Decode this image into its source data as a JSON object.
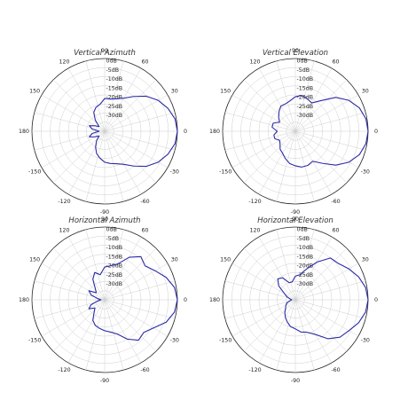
{
  "chart_data": [
    {
      "type": "polar",
      "title": "Vertical Azimuth",
      "angle_ticks": [
        0,
        30,
        60,
        90,
        120,
        150,
        180,
        -150,
        -120,
        -90,
        -60,
        -30
      ],
      "radial_ticks": [
        "0dB",
        "-5dB",
        "-10dB",
        "-15dB",
        "-20dB",
        "-25dB",
        "-30dB"
      ],
      "r_range_db": [
        -40,
        0
      ],
      "grid": true,
      "series": [
        {
          "angles": [
            0,
            10,
            20,
            30,
            40,
            50,
            60,
            70,
            80,
            90,
            100,
            110,
            120,
            130,
            140,
            150,
            160,
            170,
            180,
            190,
            200,
            210,
            220,
            230,
            240,
            250,
            260,
            270,
            280,
            290,
            300,
            310,
            320,
            330,
            340,
            350,
            360
          ],
          "values_db": [
            0,
            -0.7,
            -3,
            -6,
            -10,
            -15,
            -19,
            -21,
            -22,
            -22,
            -25,
            -26,
            -28,
            -32,
            -36,
            -34,
            -31,
            -33,
            -37,
            -33,
            -31,
            -34,
            -36,
            -33,
            -30,
            -27,
            -25,
            -23,
            -22,
            -21,
            -19,
            -15,
            -10,
            -6,
            -3,
            -0.7,
            0
          ]
        }
      ]
    },
    {
      "type": "polar",
      "title": "Vertical Elevation",
      "angle_ticks": [
        0,
        30,
        60,
        90,
        120,
        150,
        180,
        -150,
        -120,
        -90,
        -60,
        -30
      ],
      "radial_ticks": [
        "0dB",
        "-5dB",
        "-10dB",
        "-15dB",
        "-20dB",
        "-25dB",
        "-30dB"
      ],
      "r_range_db": [
        -40,
        0
      ],
      "grid": true,
      "series": [
        {
          "angles": [
            0,
            10,
            20,
            30,
            40,
            50,
            60,
            70,
            80,
            90,
            100,
            110,
            120,
            130,
            140,
            150,
            160,
            170,
            180,
            190,
            200,
            210,
            220,
            230,
            240,
            250,
            260,
            270,
            280,
            290,
            300,
            310,
            320,
            330,
            340,
            350,
            360
          ],
          "values_db": [
            0,
            -0.6,
            -2.5,
            -6,
            -11,
            -18,
            -22,
            -21,
            -20,
            -21,
            -23,
            -24,
            -24,
            -26,
            -28,
            -30,
            -27,
            -27,
            -30,
            -28,
            -28,
            -30,
            -29,
            -27,
            -26,
            -24,
            -22,
            -21,
            -20,
            -20,
            -21,
            -17,
            -11,
            -6,
            -2.5,
            -0.6,
            0
          ]
        }
      ]
    },
    {
      "type": "polar",
      "title": "Horizontal Azimuth",
      "angle_ticks": [
        0,
        30,
        60,
        90,
        120,
        150,
        180,
        -150,
        -120,
        -90,
        -60,
        -30
      ],
      "radial_ticks": [
        "0dB",
        "-5dB",
        "-10dB",
        "-15dB",
        "-20dB",
        "-25dB",
        "-30dB"
      ],
      "r_range_db": [
        -40,
        0
      ],
      "grid": true,
      "series": [
        {
          "angles": [
            0,
            10,
            20,
            30,
            40,
            50,
            60,
            70,
            80,
            90,
            100,
            110,
            120,
            130,
            140,
            150,
            160,
            170,
            180,
            190,
            200,
            210,
            220,
            230,
            240,
            250,
            260,
            270,
            280,
            290,
            300,
            310,
            320,
            330,
            340,
            350,
            360
          ],
          "values_db": [
            0,
            -1,
            -4,
            -8,
            -11,
            -9,
            -13,
            -19,
            -21,
            -22,
            -26,
            -24,
            -27,
            -32,
            -34,
            -30,
            -32,
            -36,
            -38,
            -36,
            -32,
            -30,
            -33,
            -31,
            -27,
            -25,
            -24,
            -23,
            -22,
            -20,
            -15,
            -11,
            -12,
            -9,
            -4,
            -1,
            0
          ]
        }
      ]
    },
    {
      "type": "polar",
      "title": "Horizontal Elevation",
      "angle_ticks": [
        0,
        30,
        60,
        90,
        120,
        150,
        180,
        -150,
        -120,
        -90,
        -60,
        -30
      ],
      "radial_ticks": [
        "0dB",
        "-5dB",
        "-10dB",
        "-15dB",
        "-20dB",
        "-25dB",
        "-30dB"
      ],
      "r_range_db": [
        -40,
        0
      ],
      "grid": true,
      "series": [
        {
          "angles": [
            0,
            10,
            20,
            30,
            40,
            50,
            60,
            70,
            80,
            90,
            100,
            110,
            120,
            130,
            140,
            150,
            160,
            170,
            180,
            190,
            200,
            210,
            220,
            230,
            240,
            250,
            260,
            270,
            280,
            290,
            300,
            310,
            320,
            330,
            340,
            350,
            360
          ],
          "values_db": [
            0,
            -0.8,
            -3,
            -6,
            -9,
            -10,
            -16,
            -22,
            -26,
            -27,
            -30,
            -30,
            -26,
            -25,
            -28,
            -33,
            -35,
            -37,
            -38,
            -37,
            -35,
            -34,
            -33,
            -31,
            -29,
            -27,
            -25,
            -24,
            -22,
            -21,
            -18,
            -12,
            -8,
            -6,
            -3,
            -0.8,
            0
          ]
        }
      ]
    }
  ],
  "style": {
    "line_color": "#2a2aa6",
    "grid_color": "#cfcfcf",
    "axis_color": "#222222"
  }
}
